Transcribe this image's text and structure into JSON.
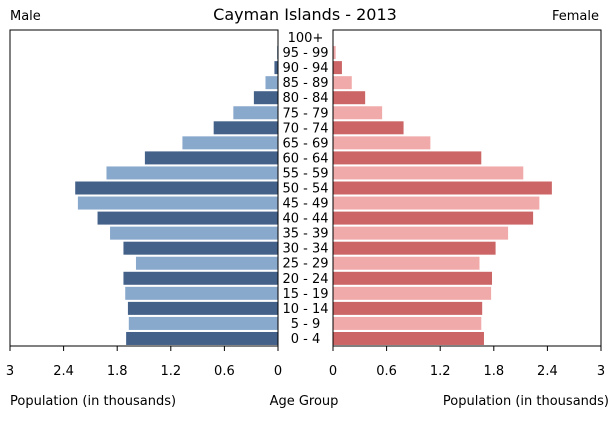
{
  "chart_data": {
    "type": "bar",
    "title": "Cayman Islands - 2013",
    "left_label": "Male",
    "right_label": "Female",
    "xlabel_left": "Population (in thousands)",
    "xlabel_center": "Age Group",
    "xlabel_right": "Population (in thousands)",
    "categories": [
      "0 - 4",
      "5 - 9",
      "10 - 14",
      "15 - 19",
      "20 - 24",
      "25 - 29",
      "30 - 34",
      "35 - 39",
      "40 - 44",
      "45 - 49",
      "50 - 54",
      "55 - 59",
      "60 - 64",
      "65 - 69",
      "70 - 74",
      "75 - 79",
      "80 - 84",
      "85 - 89",
      "90 - 94",
      "95 - 99",
      "100+"
    ],
    "xlim": [
      0,
      3
    ],
    "tick_labels": [
      "3",
      "2.4",
      "1.8",
      "1.2",
      "0.6",
      "0"
    ],
    "tick_labels_right": [
      "0",
      "0.6",
      "1.2",
      "1.8",
      "2.4",
      "3"
    ],
    "ticks": [
      3,
      2.4,
      1.8,
      1.2,
      0.6,
      0
    ],
    "series": [
      {
        "name": "Male",
        "values": [
          1.7,
          1.67,
          1.68,
          1.71,
          1.73,
          1.59,
          1.73,
          1.88,
          2.02,
          2.24,
          2.27,
          1.92,
          1.49,
          1.07,
          0.72,
          0.5,
          0.27,
          0.14,
          0.04,
          0.01,
          0.005
        ],
        "colors": [
          "#44618a",
          "#88a8cc"
        ]
      },
      {
        "name": "Female",
        "values": [
          1.69,
          1.66,
          1.67,
          1.77,
          1.78,
          1.64,
          1.82,
          1.96,
          2.24,
          2.31,
          2.45,
          2.13,
          1.66,
          1.09,
          0.79,
          0.55,
          0.36,
          0.21,
          0.1,
          0.03,
          0.005
        ],
        "colors": [
          "#cc6666",
          "#f1aaaa"
        ]
      }
    ]
  }
}
